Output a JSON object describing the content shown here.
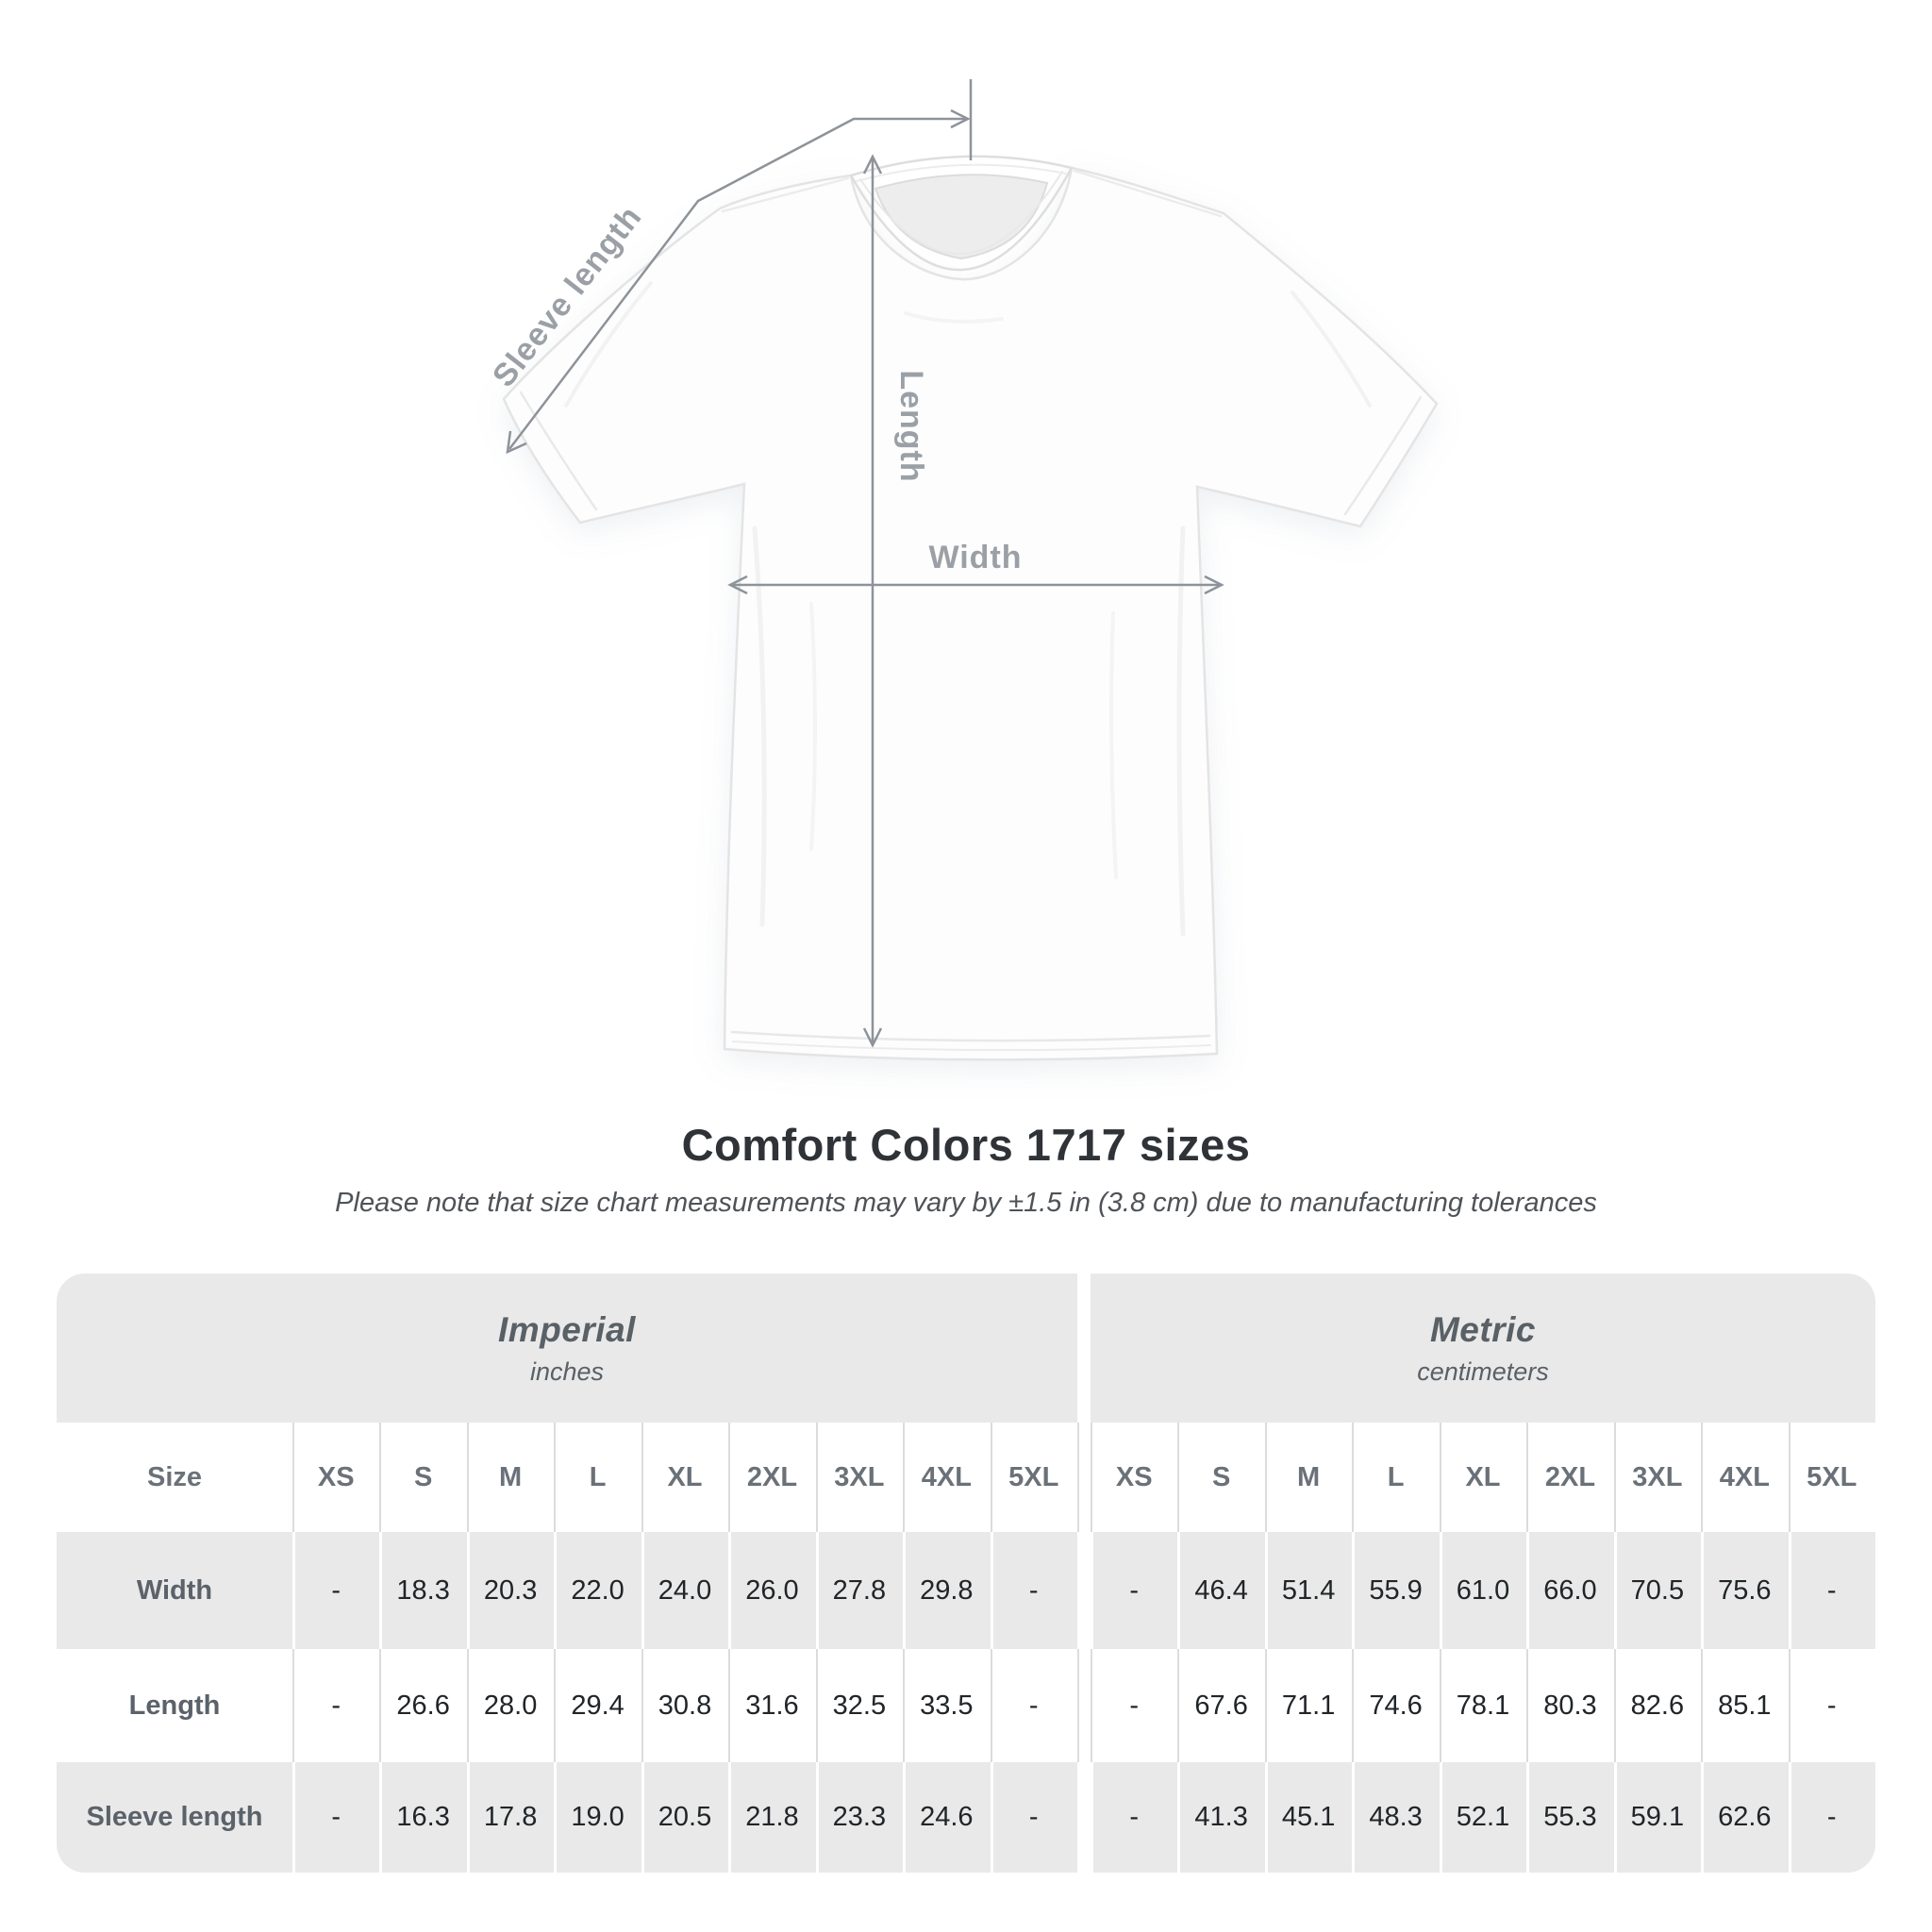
{
  "diagram": {
    "sleeve_length_label": "Sleeve length",
    "length_label": "Length",
    "width_label": "Width"
  },
  "heading": {
    "title": "Comfort Colors 1717 sizes",
    "subtitle": "Please note that size chart measurements may vary by ±1.5 in (3.8 cm) due to manufacturing tolerances"
  },
  "chart_data": {
    "type": "table",
    "title": "Comfort Colors 1717 sizes",
    "size_column_label": "Size",
    "groups": [
      {
        "label": "Imperial",
        "unit": "inches"
      },
      {
        "label": "Metric",
        "unit": "centimeters"
      }
    ],
    "sizes": [
      "XS",
      "S",
      "M",
      "L",
      "XL",
      "2XL",
      "3XL",
      "4XL",
      "5XL"
    ],
    "rows": [
      {
        "label": "Width",
        "imperial": [
          "-",
          "18.3",
          "20.3",
          "22.0",
          "24.0",
          "26.0",
          "27.8",
          "29.8",
          "-"
        ],
        "metric": [
          "-",
          "46.4",
          "51.4",
          "55.9",
          "61.0",
          "66.0",
          "70.5",
          "75.6",
          "-"
        ]
      },
      {
        "label": "Length",
        "imperial": [
          "-",
          "26.6",
          "28.0",
          "29.4",
          "30.8",
          "31.6",
          "32.5",
          "33.5",
          "-"
        ],
        "metric": [
          "-",
          "67.6",
          "71.1",
          "74.6",
          "78.1",
          "80.3",
          "82.6",
          "85.1",
          "-"
        ]
      },
      {
        "label": "Sleeve length",
        "imperial": [
          "-",
          "16.3",
          "17.8",
          "19.0",
          "20.5",
          "21.8",
          "23.3",
          "24.6",
          "-"
        ],
        "metric": [
          "-",
          "41.3",
          "45.1",
          "48.3",
          "52.1",
          "55.3",
          "59.1",
          "62.6",
          "-"
        ]
      }
    ]
  },
  "colors": {
    "annotation_line": "#8d9399",
    "annotation_label": "#9aa0a6",
    "table_band": "#e9e9e9",
    "separator_on_white": "#dcdcdc",
    "value_text": "#212528",
    "title_text": "#2f3337"
  }
}
